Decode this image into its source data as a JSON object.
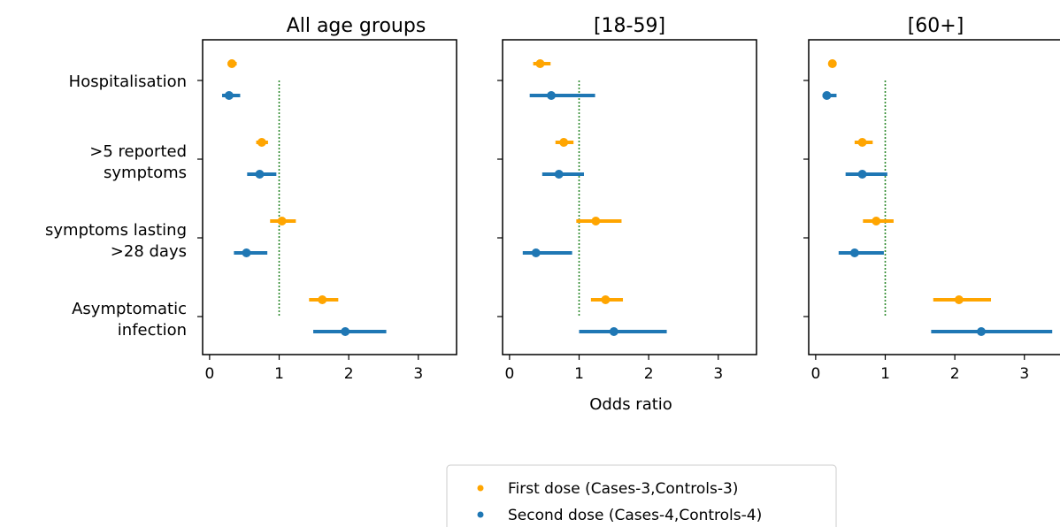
{
  "chart_data": {
    "type": "scatter",
    "subtype": "forest-plot",
    "xlabel": "Odds ratio",
    "xlim": [
      -0.1,
      3.55
    ],
    "xticks": [
      "0",
      "1",
      "2",
      "3"
    ],
    "reference_line": 1,
    "categories": [
      {
        "lines": [
          "Hospitalisation"
        ]
      },
      {
        "lines": [
          ">5 reported",
          "symptoms"
        ]
      },
      {
        "lines": [
          "symptoms lasting",
          ">28 days"
        ]
      },
      {
        "lines": [
          "Asymptomatic",
          "infection"
        ]
      }
    ],
    "series_meta": [
      {
        "name": "First dose (Cases-3,Controls-3)",
        "color": "#ffa500"
      },
      {
        "name": "Second dose (Cases-4,Controls-4)",
        "color": "#1f77b4"
      }
    ],
    "panels": [
      {
        "title": "All age groups",
        "series": [
          {
            "estimates": [
              0.32,
              0.75,
              1.04,
              1.62
            ],
            "ci_low": [
              0.26,
              0.67,
              0.87,
              1.43
            ],
            "ci_high": [
              0.39,
              0.84,
              1.24,
              1.85
            ]
          },
          {
            "estimates": [
              0.28,
              0.72,
              0.53,
              1.95
            ],
            "ci_low": [
              0.18,
              0.54,
              0.35,
              1.49
            ],
            "ci_high": [
              0.44,
              0.96,
              0.83,
              2.54
            ]
          }
        ]
      },
      {
        "title": "[18-59]",
        "series": [
          {
            "estimates": [
              0.44,
              0.78,
              1.24,
              1.38
            ],
            "ci_low": [
              0.34,
              0.66,
              0.96,
              1.17
            ],
            "ci_high": [
              0.59,
              0.92,
              1.61,
              1.63
            ]
          },
          {
            "estimates": [
              0.6,
              0.71,
              0.38,
              1.5
            ],
            "ci_low": [
              0.29,
              0.47,
              0.19,
              1.0
            ],
            "ci_high": [
              1.23,
              1.07,
              0.9,
              2.26
            ]
          }
        ]
      },
      {
        "title": "[60+]",
        "series": [
          {
            "estimates": [
              0.24,
              0.67,
              0.87,
              2.06
            ],
            "ci_low": [
              0.19,
              0.56,
              0.68,
              1.69
            ],
            "ci_high": [
              0.3,
              0.82,
              1.12,
              2.52
            ]
          },
          {
            "estimates": [
              0.16,
              0.67,
              0.56,
              2.38
            ],
            "ci_low": [
              0.1,
              0.43,
              0.33,
              1.66
            ],
            "ci_high": [
              0.3,
              1.03,
              0.98,
              3.4
            ]
          }
        ]
      }
    ]
  }
}
